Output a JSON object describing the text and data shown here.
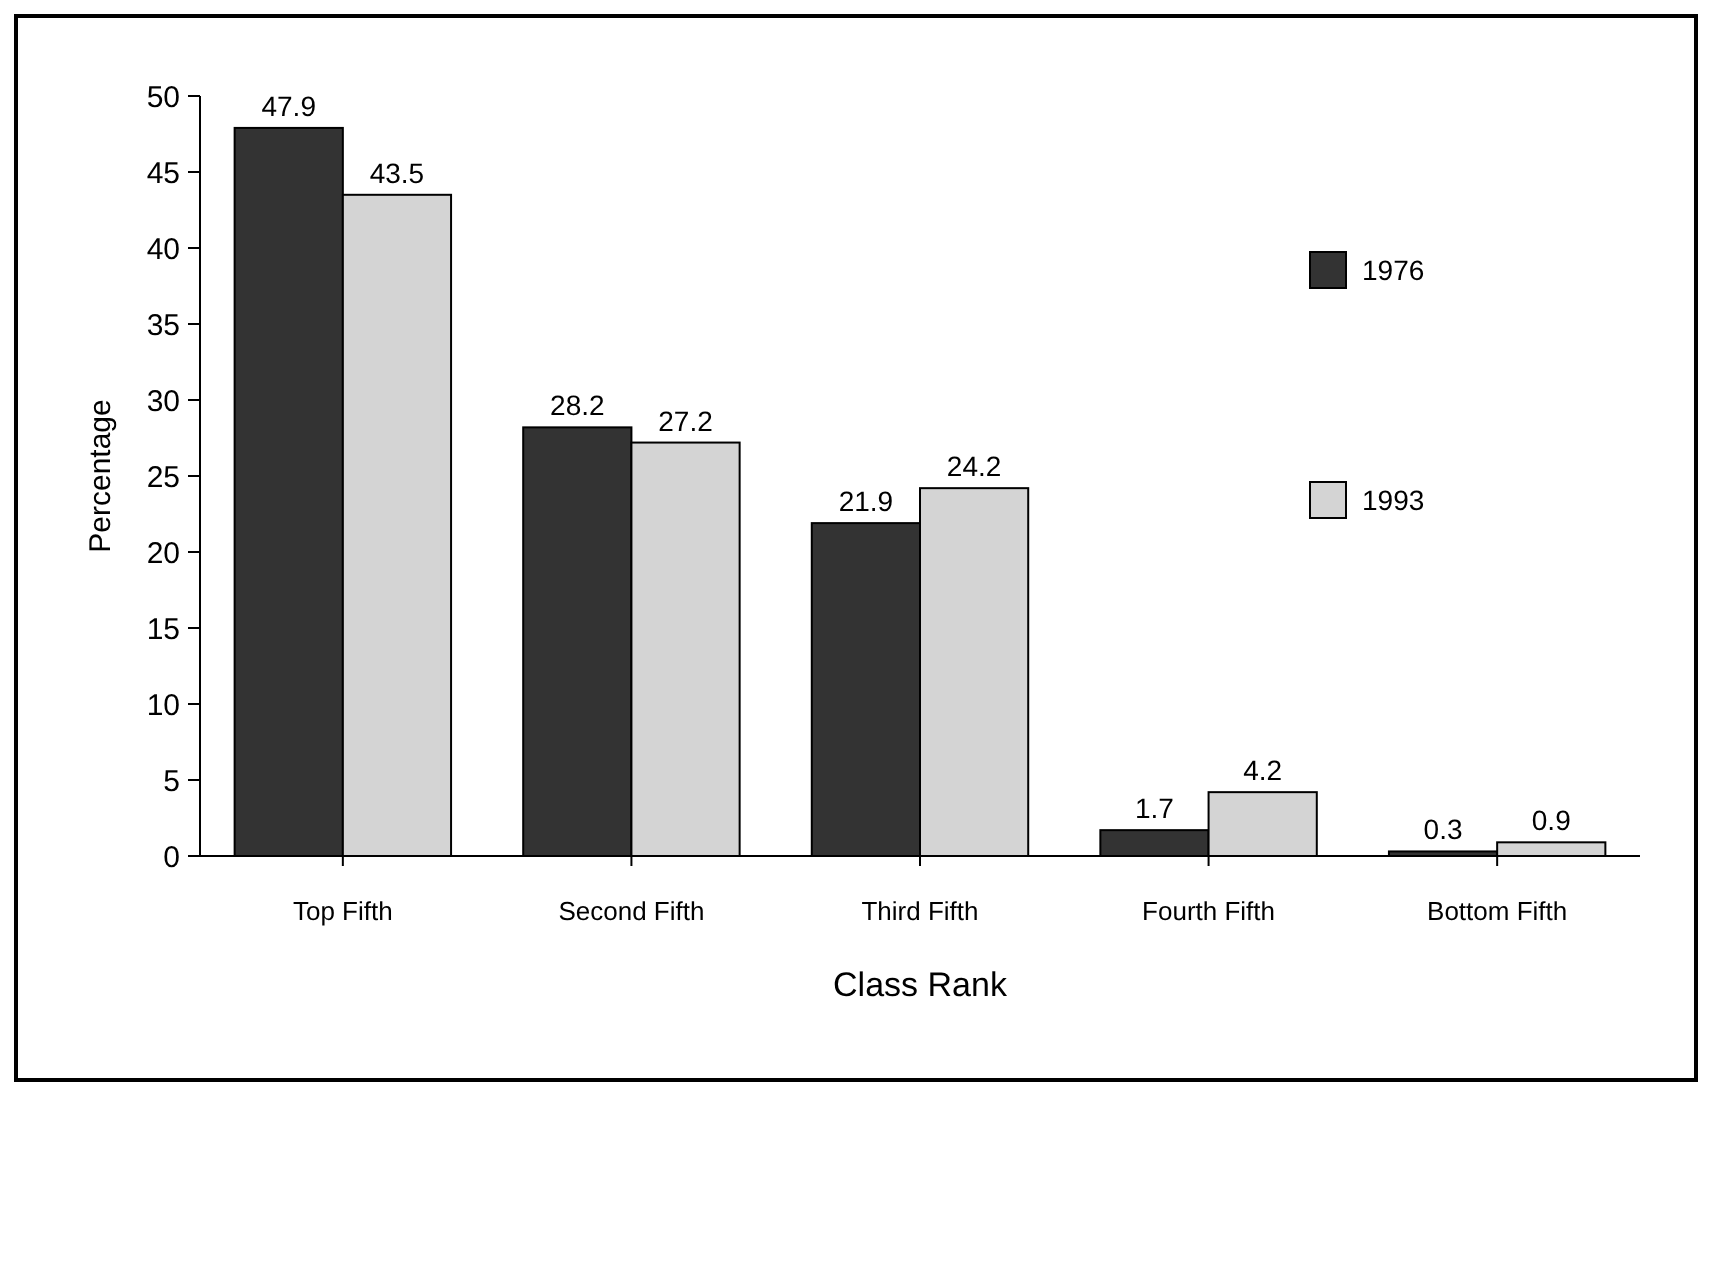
{
  "chart_data": {
    "type": "bar",
    "xlabel": "Class Rank",
    "ylabel": "Percentage",
    "categories": [
      "Top Fifth",
      "Second Fifth",
      "Third Fifth",
      "Fourth Fifth",
      "Bottom Fifth"
    ],
    "series": [
      {
        "name": "1976",
        "color": "#333333",
        "values": [
          47.9,
          28.2,
          21.9,
          1.7,
          0.3
        ]
      },
      {
        "name": "1993",
        "color": "#d4d4d4",
        "values": [
          43.5,
          27.2,
          24.2,
          4.2,
          0.9
        ]
      }
    ],
    "ylim": [
      0,
      50
    ],
    "yticks": [
      0,
      5,
      10,
      15,
      20,
      25,
      30,
      35,
      40,
      45,
      50
    ],
    "data_labels": true,
    "legend": "top right",
    "grid": false
  }
}
